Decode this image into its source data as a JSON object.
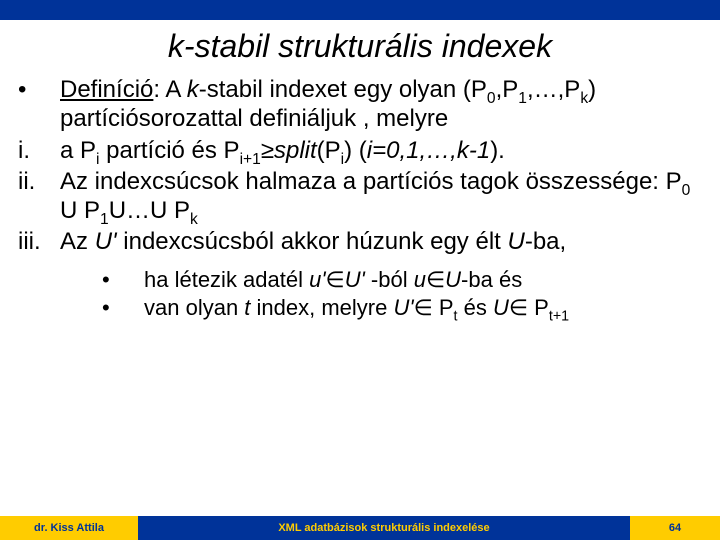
{
  "colors": {
    "topbar": "#003399",
    "footer_blue": "#003399",
    "footer_yellow": "#ffcc00",
    "background": "#ffffff",
    "text": "#000000"
  },
  "title_prefix": "k",
  "title_rest": "-stabil strukturális indexek",
  "items": [
    {
      "bullet": "•",
      "def_label": "Definíció",
      "def_rest": ": A ",
      "def_ital": "k",
      "def_tail1": "-stabil indexet egy olyan (P",
      "def_sub0": "0",
      "def_mid1": ",P",
      "def_sub1": "1",
      "def_mid2": ",…,P",
      "def_subk": "k",
      "def_tail2": ") partíciósorozattal definiáljuk , melyre"
    }
  ],
  "roman": {
    "i": {
      "num": "i.",
      "a": "a P",
      "sub_i": "i",
      "b": " partíció és P",
      "sub_i1": "i+1",
      "ge": "≥",
      "split": "split",
      "c": "(P",
      "sub_i2": "i",
      "d": ") (",
      "ital": "i=0,1,…,k-1",
      "e": ")."
    },
    "ii": {
      "num": "ii.",
      "a": "Az indexcsúcsok halmaza a partíciós tagok összessége: P",
      "s0": "0",
      "u1": " U P",
      "s1": "1",
      "u2": "U…U P",
      "sk": "k"
    },
    "iii": {
      "num": "iii.",
      "a": "Az ",
      "u": "U'",
      "b": " indexcsúcsból akkor húzunk egy élt ",
      "u2": "U",
      "c": "-ba,"
    }
  },
  "sub": {
    "a": {
      "bullet": "•",
      "t1": "ha létezik adatél ",
      "u1": "u'",
      "in1": "∈",
      "U1": "U'",
      "t2": " -ból ",
      "u2": "u",
      "in2": "∈",
      "U2": "U",
      "t3": "-ba és"
    },
    "b": {
      "bullet": "•",
      "t1": "van olyan ",
      "tvar": "t",
      "t2": " index, melyre ",
      "U1": "U'",
      "in1": "∈",
      "P1": " P",
      "st": "t",
      "t3": "  és ",
      "U2": "U",
      "in2": "∈",
      "P2": " P",
      "st1": "t+1"
    }
  },
  "footer": {
    "author": "dr. Kiss Attila",
    "center": "XML adatbázisok strukturális indexelése",
    "page": "64"
  }
}
